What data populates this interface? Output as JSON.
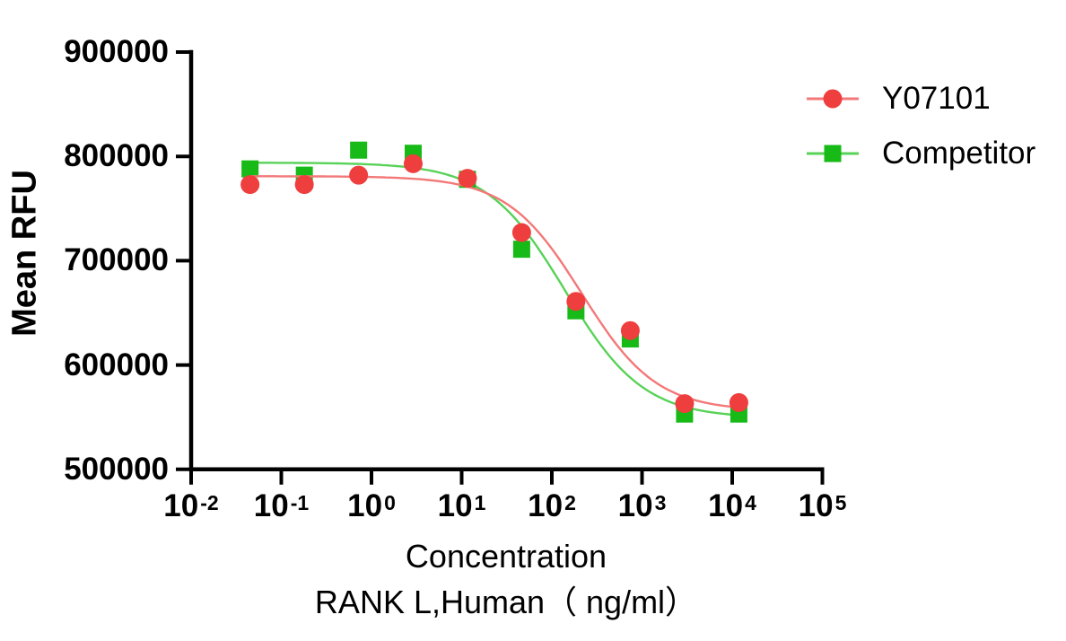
{
  "chart_data": {
    "type": "scatter",
    "title": "",
    "x_axis": {
      "title_line1": "Concentration",
      "title_line2": "RANK L,Human（ ng/ml）",
      "scale": "log10",
      "tick_base": "10",
      "tick_exponents": [
        -2,
        -1,
        0,
        1,
        2,
        3,
        4,
        5
      ],
      "range_exponents": [
        -2,
        5
      ]
    },
    "y_axis": {
      "title": "Mean RFU",
      "ticks": [
        500000,
        600000,
        700000,
        800000,
        900000
      ],
      "range": [
        500000,
        900000
      ]
    },
    "legend": {
      "position": "top-right"
    },
    "series": [
      {
        "name": "Y07101",
        "marker": "circle",
        "color": "#EF3E3E",
        "line_color": "#F37878",
        "x": [
          0.045,
          0.18,
          0.72,
          2.9,
          11.6,
          46.3,
          185,
          741,
          2963,
          11852
        ],
        "y": [
          773000,
          773000,
          782000,
          793000,
          779000,
          727000,
          661000,
          633000,
          563000,
          564000
        ],
        "fit_curve": {
          "model": "4PL",
          "top": 781000,
          "bottom": 556000,
          "ec50": 215,
          "hill": 1.05
        }
      },
      {
        "name": "Competitor",
        "marker": "square",
        "color": "#17BA17",
        "line_color": "#58D258",
        "x": [
          0.045,
          0.18,
          0.72,
          2.9,
          11.6,
          46.3,
          185,
          741,
          2963,
          11852
        ],
        "y": [
          788000,
          782000,
          806000,
          803000,
          778000,
          711000,
          652000,
          625000,
          553000,
          553000
        ],
        "fit_curve": {
          "model": "4PL",
          "top": 794000,
          "bottom": 549000,
          "ec50": 140,
          "hill": 1.0
        }
      }
    ]
  }
}
